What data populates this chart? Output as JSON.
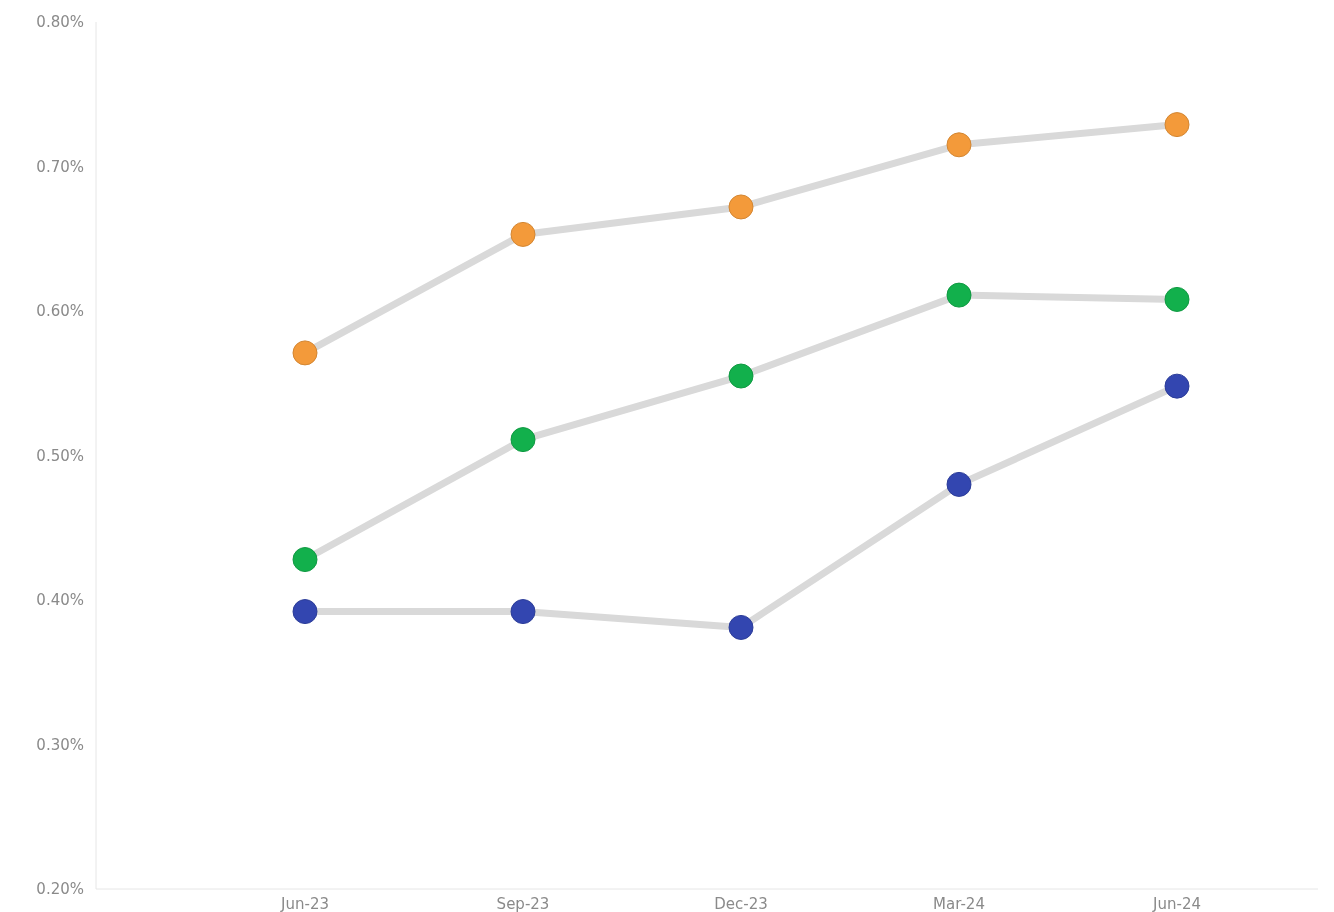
{
  "chart_data": {
    "type": "line",
    "categories": [
      "Jun-23",
      "Sep-23",
      "Dec-23",
      "Mar-24",
      "Jun-24"
    ],
    "series": [
      {
        "color": "#f39a3a",
        "values": [
          0.571,
          0.653,
          0.672,
          0.715,
          0.729
        ]
      },
      {
        "color": "#12b04c",
        "values": [
          0.428,
          0.511,
          0.555,
          0.611,
          0.608
        ]
      },
      {
        "color": "#3346b0",
        "values": [
          0.392,
          0.392,
          0.381,
          0.48,
          0.548
        ]
      }
    ],
    "ylim": [
      0.2,
      0.8
    ],
    "yticks": [
      {
        "value": 0.2,
        "label": "0.20%"
      },
      {
        "value": 0.3,
        "label": "0.30%"
      },
      {
        "value": 0.4,
        "label": "0.40%"
      },
      {
        "value": 0.5,
        "label": "0.50%"
      },
      {
        "value": 0.6,
        "label": "0.60%"
      },
      {
        "value": 0.7,
        "label": "0.70%"
      },
      {
        "value": 0.8,
        "label": "0.80%"
      }
    ],
    "grid": false,
    "marker": "circle",
    "line_style": "solid"
  }
}
